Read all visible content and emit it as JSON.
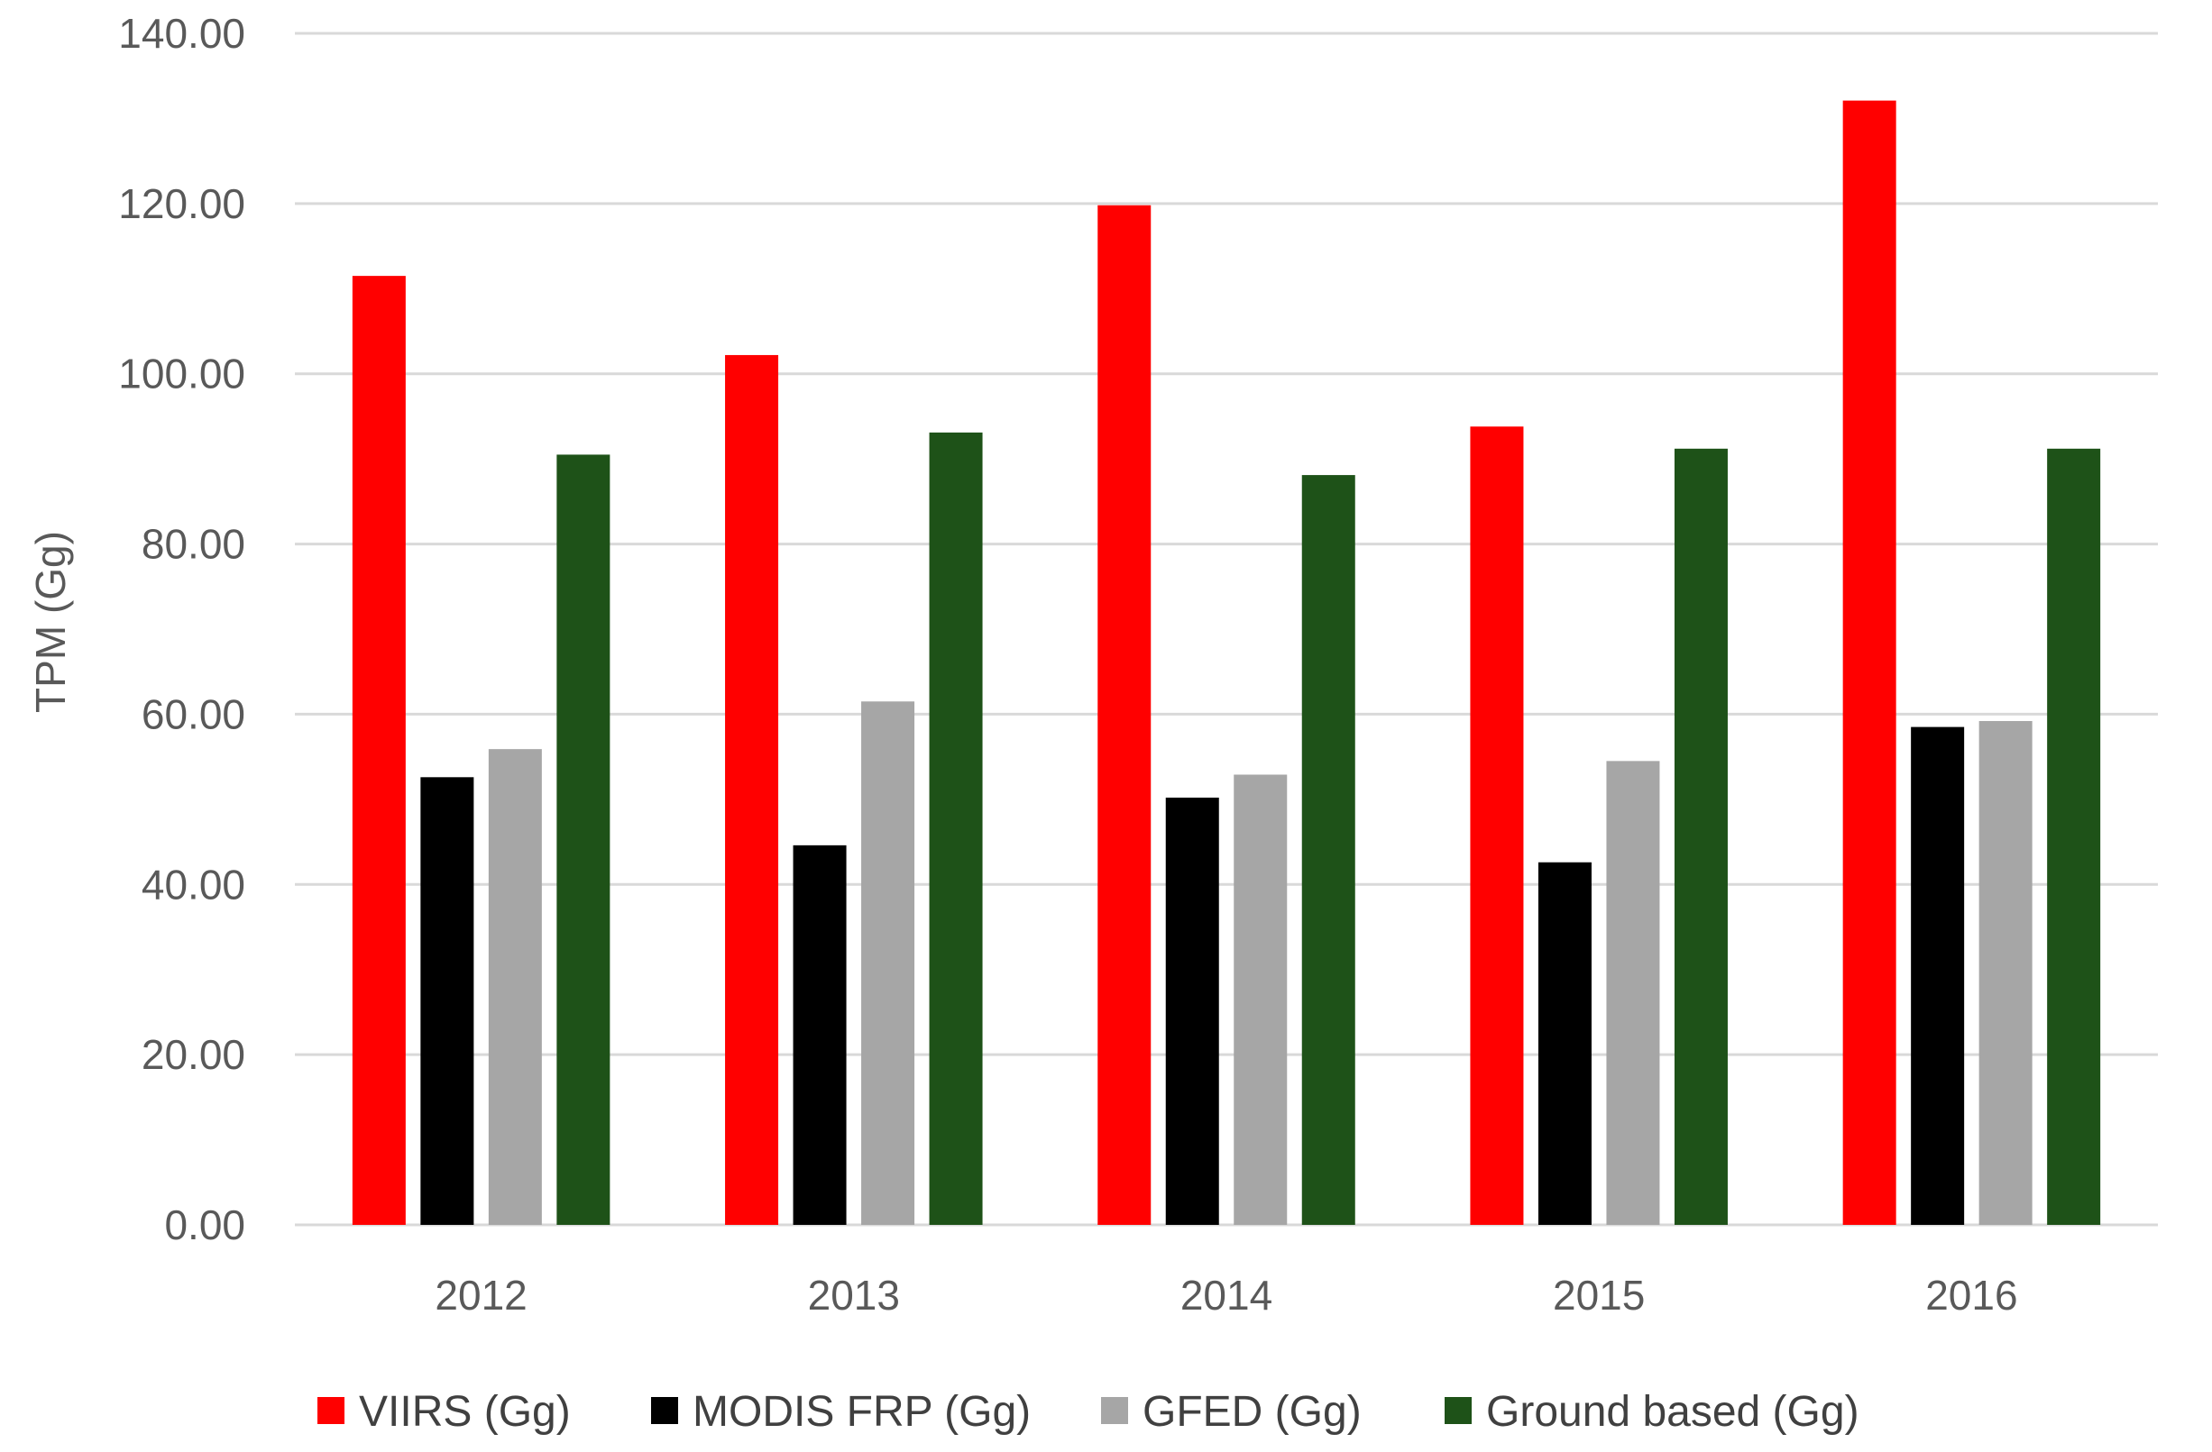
{
  "chart_data": {
    "type": "bar",
    "title": "",
    "xlabel": "",
    "ylabel": "TPM (Gg)",
    "ylim": [
      0,
      140
    ],
    "ytick_step": 20,
    "ytick_labels": [
      "0.00",
      "20.00",
      "40.00",
      "60.00",
      "80.00",
      "100.00",
      "120.00",
      "140.00"
    ],
    "grid": true,
    "legend_position": "bottom",
    "categories": [
      "2012",
      "2013",
      "2014",
      "2015",
      "2016"
    ],
    "series": [
      {
        "name": "VIIRS (Gg)",
        "color": "#ff0000",
        "values": [
          111.5,
          102.2,
          119.8,
          93.8,
          132.1
        ]
      },
      {
        "name": "MODIS FRP (Gg)",
        "color": "#000000",
        "values": [
          52.6,
          44.6,
          50.2,
          42.6,
          58.5
        ]
      },
      {
        "name": "GFED (Gg)",
        "color": "#a6a6a6",
        "values": [
          55.9,
          61.5,
          52.9,
          54.5,
          59.2
        ]
      },
      {
        "name": "Ground based (Gg)",
        "color": "#1e5218",
        "values": [
          90.5,
          93.1,
          88.1,
          91.2,
          91.2
        ]
      }
    ]
  }
}
